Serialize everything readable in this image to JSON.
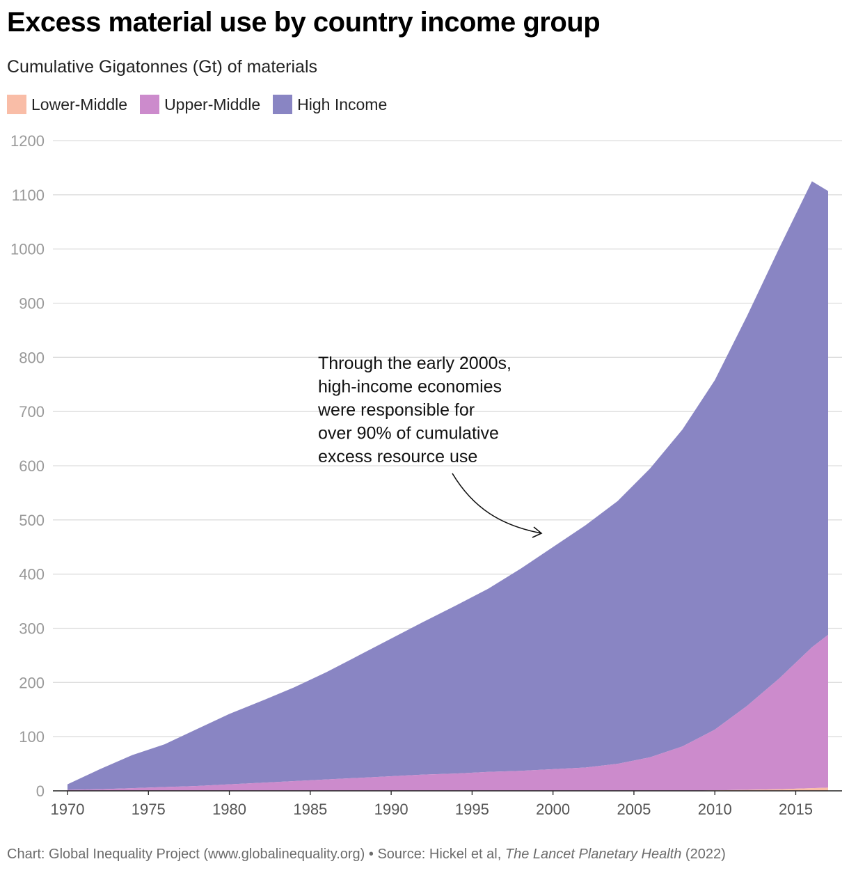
{
  "title": "Excess material use by country income group",
  "subtitle": "Cumulative Gigatonnes (Gt) of materials",
  "colors": {
    "lower_middle": "#f9bda7",
    "upper_middle": "#cc8bcc",
    "high_income": "#8985c3",
    "grid": "#dddddd",
    "axis": "#222222",
    "tick": "#999999"
  },
  "annotation": {
    "lines": [
      "Through the early 2000s,",
      "high-income economies",
      "were responsible for",
      "over 90% of cumulative",
      "excess resource use"
    ]
  },
  "footer": {
    "prefix": "Chart: Global Inequality Project (www.globalinequality.org) • Source: Hickel et al, ",
    "journal": "The Lancet Planetary Health",
    "suffix": " (2022)"
  },
  "chart_data": {
    "type": "area",
    "stacked": true,
    "xlim": [
      1970,
      2017
    ],
    "ylim": [
      0,
      1200
    ],
    "x_ticks": [
      "1970",
      "1975",
      "1980",
      "1985",
      "1990",
      "1995",
      "2000",
      "2005",
      "2010",
      "2015"
    ],
    "y_ticks": [
      "0",
      "100",
      "200",
      "300",
      "400",
      "500",
      "600",
      "700",
      "800",
      "900",
      "1000",
      "1100",
      "1200"
    ],
    "grid": true,
    "legend_position": "top-left",
    "x": [
      1970,
      1972,
      1974,
      1976,
      1978,
      1980,
      1982,
      1984,
      1986,
      1988,
      1990,
      1992,
      1994,
      1996,
      1998,
      2000,
      2002,
      2004,
      2006,
      2008,
      2010,
      2012,
      2014,
      2016,
      2017
    ],
    "series": [
      {
        "name": "Lower-Middle",
        "values": [
          0,
          0,
          0,
          0,
          0,
          0,
          0,
          0,
          0,
          0,
          0,
          0,
          0,
          0,
          0,
          0,
          0,
          0,
          0,
          0,
          1,
          2,
          3,
          5,
          6
        ]
      },
      {
        "name": "Upper-Middle",
        "values": [
          2,
          3,
          5,
          7,
          9,
          12,
          15,
          18,
          21,
          24,
          27,
          30,
          32,
          35,
          37,
          40,
          43,
          50,
          62,
          82,
          112,
          155,
          205,
          260,
          282
        ]
      },
      {
        "name": "High Income",
        "values": [
          10,
          37,
          61,
          79,
          105,
          130,
          151,
          173,
          198,
          226,
          254,
          282,
          310,
          338,
          373,
          410,
          447,
          485,
          533,
          585,
          645,
          720,
          795,
          860,
          819
        ]
      }
    ]
  }
}
